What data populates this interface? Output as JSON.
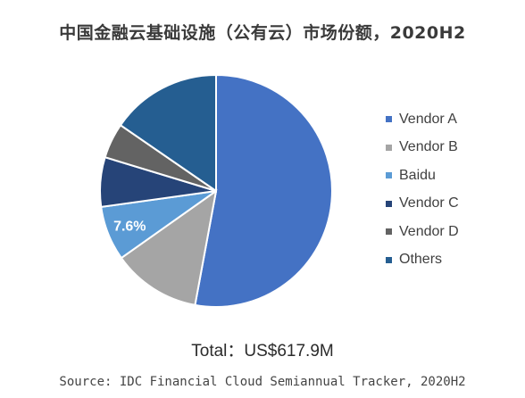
{
  "chart_data": {
    "type": "pie",
    "title": "中国金融云基础设施（公有云）市场份额，2020H2",
    "slices": [
      {
        "label": "Vendor A",
        "value": 52.9,
        "color": "#4472c4"
      },
      {
        "label": "Vendor B",
        "value": 12.3,
        "color": "#a5a5a5"
      },
      {
        "label": "Baidu",
        "value": 7.6,
        "color": "#5b9bd5",
        "data_label": "7.6%"
      },
      {
        "label": "Vendor C",
        "value": 6.9,
        "color": "#264478"
      },
      {
        "label": "Vendor D",
        "value": 4.9,
        "color": "#636363"
      },
      {
        "label": "Others",
        "value": 15.4,
        "color": "#255e91"
      }
    ],
    "legend_position": "right"
  },
  "total_text": "Total：US$617.9M",
  "source_text": "Source: IDC Financial Cloud Semiannual Tracker, 2020H2"
}
